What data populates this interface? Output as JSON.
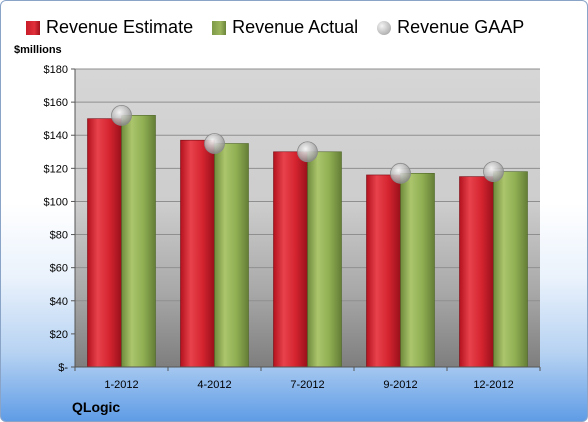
{
  "legend": {
    "estimate": "Revenue Estimate",
    "actual": "Revenue Actual",
    "gaap": "Revenue GAAP"
  },
  "company": "QLogic",
  "colors": {
    "estimate": "#d42430",
    "actual": "#8fae52",
    "gaap": "#b8b8b8"
  },
  "chart_data": {
    "type": "bar",
    "title": "",
    "xlabel": "",
    "ylabel": "$millions",
    "ylim": [
      0,
      180
    ],
    "y_ticks": [
      0,
      20,
      40,
      60,
      80,
      100,
      120,
      140,
      160,
      180
    ],
    "y_tick_labels": [
      "$-",
      "$20",
      "$40",
      "$60",
      "$80",
      "$100",
      "$120",
      "$140",
      "$160",
      "$180"
    ],
    "categories": [
      "1-2012",
      "4-2012",
      "7-2012",
      "9-2012",
      "12-2012"
    ],
    "series": [
      {
        "name": "Revenue Estimate",
        "kind": "bar",
        "values": [
          150,
          137,
          130,
          116,
          115
        ]
      },
      {
        "name": "Revenue Actual",
        "kind": "bar",
        "values": [
          152,
          135,
          130,
          117,
          118
        ]
      },
      {
        "name": "Revenue GAAP",
        "kind": "marker",
        "values": [
          152,
          135,
          130,
          117,
          118
        ]
      }
    ],
    "grid": true,
    "legend_position": "top"
  }
}
